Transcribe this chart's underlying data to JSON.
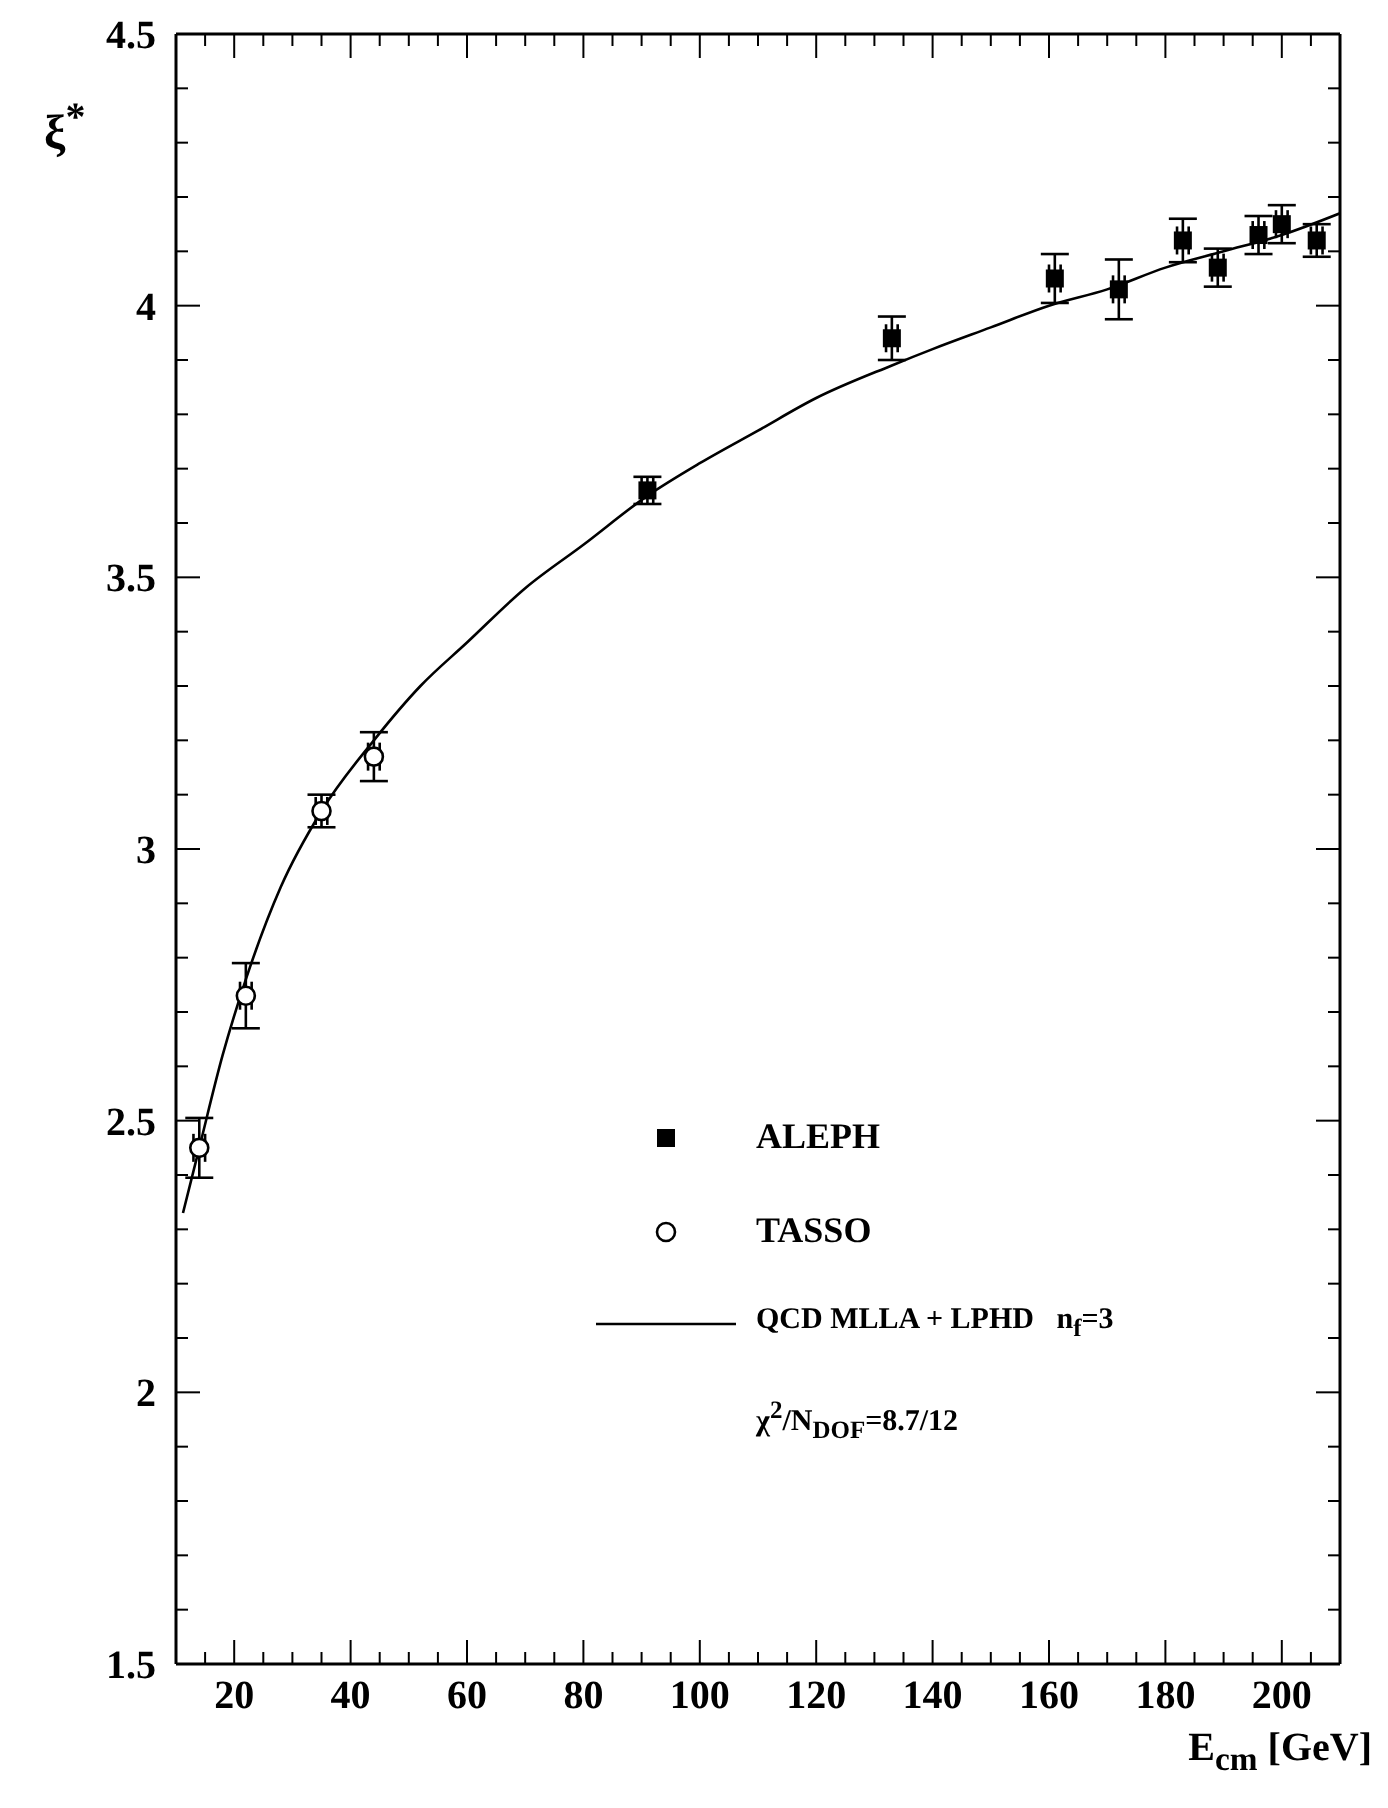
{
  "chart_data": {
    "type": "scatter",
    "xlabel": "E$_{cm}$ [GeV]",
    "ylabel": "ξ$^{*}$",
    "xlim": [
      10,
      210
    ],
    "xticks": [
      {
        "value": 15,
        "label": null
      },
      20,
      {
        "value": 25,
        "label": null
      },
      {
        "value": 30,
        "label": null
      },
      {
        "value": 35,
        "label": null
      },
      40,
      {
        "value": 45,
        "label": null
      },
      {
        "value": 50,
        "label": null
      },
      {
        "value": 55,
        "label": null
      },
      60,
      {
        "value": 65,
        "label": null
      },
      {
        "value": 70,
        "label": null
      },
      {
        "value": 75,
        "label": null
      },
      80,
      {
        "value": 85,
        "label": null
      },
      {
        "value": 90,
        "label": null
      },
      {
        "value": 95,
        "label": null
      },
      100,
      {
        "value": 105,
        "label": null
      },
      {
        "value": 110,
        "label": null
      },
      {
        "value": 115,
        "label": null
      },
      120,
      {
        "value": 125,
        "label": null
      },
      {
        "value": 130,
        "label": null
      },
      {
        "value": 135,
        "label": null
      },
      140,
      {
        "value": 145,
        "label": null
      },
      {
        "value": 150,
        "label": null
      },
      {
        "value": 155,
        "label": null
      },
      160,
      {
        "value": 165,
        "label": null
      },
      {
        "value": 170,
        "label": null
      },
      {
        "value": 175,
        "label": null
      },
      180,
      {
        "value": 185,
        "label": null
      },
      {
        "value": 190,
        "label": null
      },
      {
        "value": 195,
        "label": null
      },
      200,
      {
        "value": 205,
        "label": null
      }
    ],
    "ylim": [
      1.5,
      4.5
    ],
    "yticks": [
      1.5,
      {
        "value": 1.6,
        "label": null
      },
      {
        "value": 1.7,
        "label": null
      },
      {
        "value": 1.8,
        "label": null
      },
      {
        "value": 1.9,
        "label": null
      },
      2,
      {
        "value": 2.1,
        "label": null
      },
      {
        "value": 2.2,
        "label": null
      },
      {
        "value": 2.3,
        "label": null
      },
      {
        "value": 2.4,
        "label": null
      },
      2.5,
      {
        "value": 2.6,
        "label": null
      },
      {
        "value": 2.7,
        "label": null
      },
      {
        "value": 2.8,
        "label": null
      },
      {
        "value": 2.9,
        "label": null
      },
      3,
      {
        "value": 3.1,
        "label": null
      },
      {
        "value": 3.2,
        "label": null
      },
      {
        "value": 3.3,
        "label": null
      },
      {
        "value": 3.4,
        "label": null
      },
      3.5,
      {
        "value": 3.6,
        "label": null
      },
      {
        "value": 3.7,
        "label": null
      },
      {
        "value": 3.8,
        "label": null
      },
      {
        "value": 3.9,
        "label": null
      },
      4,
      {
        "value": 4.1,
        "label": null
      },
      {
        "value": 4.2,
        "label": null
      },
      {
        "value": 4.3,
        "label": null
      },
      {
        "value": 4.4,
        "label": null
      },
      4.5
    ],
    "legend": "right",
    "series": [
      {
        "name": "ALEPH",
        "marker": "square",
        "color": "#000000",
        "x": [
          91,
          133,
          161,
          172,
          183,
          189,
          196,
          200,
          206
        ],
        "values": [
          3.66,
          3.94,
          4.05,
          4.03,
          4.12,
          4.07,
          4.13,
          4.15,
          4.12
        ],
        "errors": [
          0.025,
          0.04,
          0.045,
          0.055,
          0.04,
          0.035,
          0.035,
          0.035,
          0.03
        ],
        "xerrors": [
          1,
          1,
          1,
          1,
          1,
          1,
          1,
          1,
          1
        ]
      },
      {
        "name": "TASSO",
        "marker": "circle",
        "color": "#000000",
        "x": [
          14,
          22,
          35,
          44
        ],
        "values": [
          2.45,
          2.73,
          3.07,
          3.17
        ],
        "errors": [
          0.055,
          0.06,
          0.03,
          0.045
        ],
        "xerrors": [
          1,
          1,
          1,
          1
        ]
      },
      {
        "name": "QCD MLLA + LPHD   n$_{f}$=3",
        "type": "line",
        "marker": "none",
        "line_style": "solid",
        "color": "#000000",
        "x": [
          11.2,
          14,
          18,
          22,
          28,
          35,
          44,
          52,
          60,
          70,
          80,
          91,
          100,
          110,
          120,
          133,
          140,
          150,
          160,
          170,
          180,
          190,
          200,
          210
        ],
        "values": [
          2.33,
          2.45,
          2.62,
          2.76,
          2.93,
          3.07,
          3.2,
          3.3,
          3.38,
          3.48,
          3.56,
          3.65,
          3.71,
          3.77,
          3.83,
          3.89,
          3.92,
          3.96,
          4.0,
          4.03,
          4.07,
          4.1,
          4.13,
          4.17
        ]
      }
    ],
    "annotations": [
      "χ$^{2}$/N$_{DOF}$=8.7/12"
    ]
  }
}
